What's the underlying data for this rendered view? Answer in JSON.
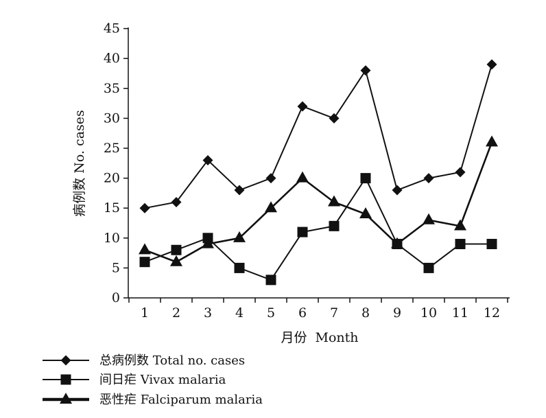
{
  "chart_data": {
    "type": "line",
    "title": "",
    "xlabel": "月份  Month",
    "ylabel": "病例数  No. cases",
    "categories": [
      "1",
      "2",
      "3",
      "4",
      "5",
      "6",
      "7",
      "8",
      "9",
      "10",
      "11",
      "12"
    ],
    "ylim": [
      0,
      45
    ],
    "yticks": [
      "0",
      "5",
      "10",
      "15",
      "20",
      "25",
      "30",
      "35",
      "40",
      "45"
    ],
    "grid": false,
    "legend_position": "bottom-left",
    "series": [
      {
        "name": "总病例数  Total  no. cases",
        "marker": "diamond",
        "line": "thin",
        "values": [
          15,
          16,
          23,
          18,
          20,
          32,
          30,
          38,
          18,
          20,
          21,
          39
        ]
      },
      {
        "name": "间日疟  Vivax  malaria",
        "marker": "square",
        "line": "thin",
        "values": [
          6,
          8,
          10,
          5,
          3,
          11,
          12,
          20,
          9,
          5,
          9,
          9
        ]
      },
      {
        "name": "恶性疟  Falciparum  malaria",
        "marker": "triangle",
        "line": "thick",
        "values": [
          8,
          6,
          9,
          10,
          15,
          20,
          16,
          14,
          9,
          13,
          12,
          26
        ]
      }
    ]
  }
}
